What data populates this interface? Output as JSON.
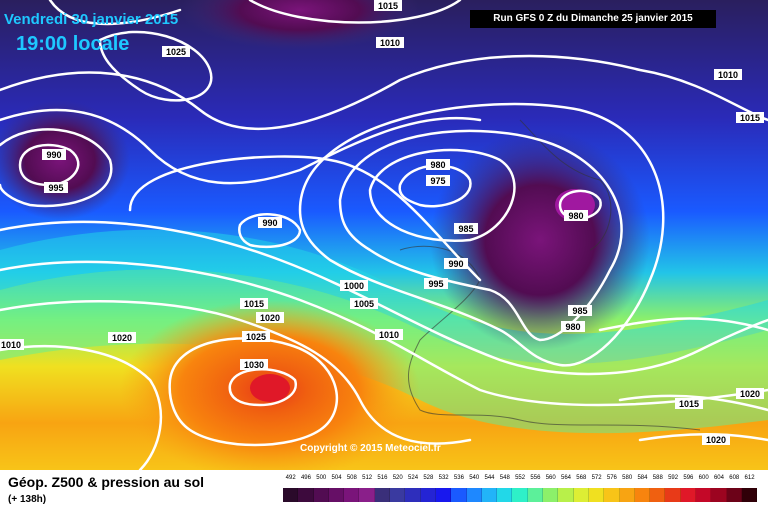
{
  "header": {
    "date": "Vendredi 30 janvier 2015",
    "time": "19:00 locale",
    "run": "Run GFS 0 Z du Dimanche 25 janvier 2015",
    "copyright": "Copyright © 2015 Meteociel.fr"
  },
  "legend": {
    "title": "Géop. Z500 & pression au sol",
    "subtitle": "(+ 138h)",
    "scale": [
      "492",
      "496",
      "500",
      "504",
      "508",
      "512",
      "516",
      "520",
      "524",
      "528",
      "532",
      "536",
      "540",
      "544",
      "548",
      "552",
      "556",
      "560",
      "564",
      "568",
      "572",
      "576",
      "580",
      "584",
      "588",
      "592",
      "596",
      "600",
      "604",
      "608",
      "612"
    ],
    "colors": [
      "#2a0a2a",
      "#3d0a3d",
      "#520c52",
      "#660f66",
      "#7a147a",
      "#8a1f8a",
      "#3a2f7a",
      "#3a3aa0",
      "#2e2ebc",
      "#2424d4",
      "#1818ee",
      "#1a5aff",
      "#1e88ff",
      "#22b4f8",
      "#22d8e8",
      "#2ef0c8",
      "#5cf09a",
      "#8cf06a",
      "#b8f04a",
      "#ddee34",
      "#f0e020",
      "#f8c418",
      "#f8a412",
      "#f8840e",
      "#f06010",
      "#e83a18",
      "#e01828",
      "#c40828",
      "#9c0420",
      "#6c0218",
      "#300008"
    ]
  },
  "isobars": [
    {
      "label": "1015",
      "note": "top-center"
    },
    {
      "label": "1010",
      "note": "top"
    },
    {
      "label": "1025",
      "note": "top-left high"
    },
    {
      "label": "1010",
      "note": "top-right"
    },
    {
      "label": "1015",
      "note": "right"
    },
    {
      "label": "990",
      "note": "left low"
    },
    {
      "label": "995",
      "note": "left low"
    },
    {
      "label": "980",
      "note": "north atlantic low"
    },
    {
      "label": "975",
      "note": "north atlantic low center"
    },
    {
      "label": "980",
      "note": "scandinavia low center"
    },
    {
      "label": "985",
      "note": "north sea"
    },
    {
      "label": "990",
      "note": "central"
    },
    {
      "label": "990",
      "note": "mid atlantic"
    },
    {
      "label": "995",
      "note": "bay of biscay"
    },
    {
      "label": "1000",
      "note": "atlantic"
    },
    {
      "label": "1005",
      "note": "atlantic"
    },
    {
      "label": "1010",
      "note": "iberia"
    },
    {
      "label": "1015",
      "note": "azores ridge"
    },
    {
      "label": "1020",
      "note": "azores ridge"
    },
    {
      "label": "1020",
      "note": "west"
    },
    {
      "label": "1010",
      "note": "far west"
    },
    {
      "label": "1025",
      "note": "azores high"
    },
    {
      "label": "1030",
      "note": "azores high center"
    },
    {
      "label": "985",
      "note": "central europe"
    },
    {
      "label": "980",
      "note": "central europe"
    },
    {
      "label": "1015",
      "note": "east"
    },
    {
      "label": "1020",
      "note": "east"
    },
    {
      "label": "1020",
      "note": "southeast"
    }
  ]
}
